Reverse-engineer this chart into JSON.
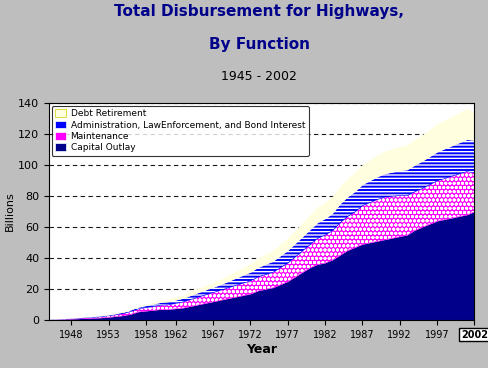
{
  "title_line1": "Total Disbursement for Highways,",
  "title_line2": "By Function",
  "subtitle": "1945 - 2002",
  "xlabel": "Year",
  "ylabel": "Billions",
  "years": [
    1945,
    1946,
    1947,
    1948,
    1949,
    1950,
    1951,
    1952,
    1953,
    1954,
    1955,
    1956,
    1957,
    1958,
    1959,
    1960,
    1961,
    1962,
    1963,
    1964,
    1965,
    1966,
    1967,
    1968,
    1969,
    1970,
    1971,
    1972,
    1973,
    1974,
    1975,
    1976,
    1977,
    1978,
    1979,
    1980,
    1981,
    1982,
    1983,
    1984,
    1985,
    1986,
    1987,
    1988,
    1989,
    1990,
    1991,
    1992,
    1993,
    1994,
    1995,
    1996,
    1997,
    1998,
    1999,
    2000,
    2001,
    2002
  ],
  "capital_outlay": [
    0.3,
    0.4,
    0.6,
    0.8,
    1.0,
    1.2,
    1.4,
    1.6,
    2.0,
    2.5,
    3.0,
    4.0,
    5.5,
    6.0,
    6.5,
    7.0,
    7.0,
    7.5,
    8.0,
    9.0,
    10.0,
    11.0,
    12.0,
    13.0,
    14.0,
    15.0,
    16.0,
    17.0,
    19.0,
    20.0,
    21.0,
    23.0,
    25.0,
    28.0,
    31.0,
    34.0,
    36.0,
    37.0,
    39.0,
    42.0,
    45.0,
    47.0,
    49.0,
    50.0,
    51.0,
    52.0,
    53.0,
    54.0,
    55.0,
    58.0,
    60.0,
    62.0,
    64.0,
    65.0,
    66.0,
    67.0,
    68.0,
    70.0
  ],
  "maintenance": [
    0.1,
    0.15,
    0.2,
    0.3,
    0.4,
    0.5,
    0.6,
    0.8,
    1.0,
    1.2,
    1.5,
    1.8,
    2.0,
    2.2,
    2.5,
    2.8,
    3.0,
    3.5,
    4.0,
    4.5,
    5.0,
    5.5,
    6.0,
    6.5,
    7.0,
    7.5,
    8.0,
    8.5,
    9.0,
    9.5,
    10.0,
    11.0,
    12.0,
    13.0,
    14.0,
    15.0,
    17.0,
    18.0,
    19.0,
    21.0,
    22.0,
    23.0,
    25.0,
    26.0,
    27.0,
    27.5,
    27.0,
    26.5,
    25.5,
    25.0,
    25.0,
    25.5,
    26.0,
    26.5,
    27.0,
    27.5,
    28.0,
    25.0
  ],
  "admin_law": [
    0.1,
    0.1,
    0.15,
    0.2,
    0.25,
    0.3,
    0.35,
    0.4,
    0.5,
    0.6,
    0.7,
    0.9,
    1.0,
    1.2,
    1.5,
    1.7,
    1.9,
    2.0,
    2.2,
    2.5,
    2.8,
    3.0,
    3.2,
    3.5,
    4.0,
    4.5,
    5.0,
    5.5,
    6.0,
    6.5,
    7.0,
    7.5,
    8.0,
    8.5,
    9.0,
    9.5,
    10.0,
    10.5,
    11.0,
    12.0,
    12.5,
    13.0,
    13.5,
    14.0,
    14.5,
    15.0,
    15.5,
    16.0,
    16.5,
    17.0,
    17.5,
    18.0,
    18.5,
    19.0,
    19.5,
    20.0,
    20.5,
    21.0
  ],
  "debt_retirement": [
    0.05,
    0.05,
    0.1,
    0.1,
    0.2,
    0.2,
    0.2,
    0.3,
    0.3,
    0.4,
    0.5,
    0.6,
    0.8,
    1.0,
    1.2,
    1.5,
    1.8,
    2.0,
    2.2,
    2.5,
    2.8,
    3.0,
    3.2,
    3.5,
    4.0,
    4.5,
    5.0,
    5.5,
    6.0,
    6.5,
    7.0,
    7.5,
    8.0,
    8.5,
    9.0,
    9.5,
    10.0,
    10.5,
    11.0,
    11.5,
    12.0,
    12.5,
    13.0,
    13.5,
    14.0,
    14.5,
    15.0,
    15.5,
    16.0,
    16.5,
    17.0,
    17.5,
    18.0,
    18.5,
    19.0,
    19.5,
    20.0,
    18.0
  ],
  "ylim": [
    0,
    140
  ],
  "xlim": [
    1945,
    2002
  ],
  "xticks": [
    1948,
    1953,
    1958,
    1962,
    1967,
    1972,
    1977,
    1982,
    1987,
    1992,
    1997,
    2002
  ],
  "yticks": [
    0,
    20,
    40,
    60,
    80,
    100,
    120,
    140
  ],
  "bg_color": "#bebebe",
  "plot_bg_color": "#ffffff",
  "title_color": "#00008b",
  "subtitle_color": "#000000",
  "capital_color": "#00008b",
  "maintenance_color": "#ff00ff",
  "admin_color": "#0000ff",
  "debt_color": "#ffffe0",
  "legend_items": [
    {
      "label": "Debt Retirement",
      "color": "#ffffe0",
      "edge": "#cccc00"
    },
    {
      "label": "Administration, LawEnforcement, and Bond Interest",
      "color": "#0000ff",
      "edge": "#ffffff"
    },
    {
      "label": "Maintenance",
      "color": "#ff00ff",
      "edge": "#ffffff"
    },
    {
      "label": "Capital Outlay",
      "color": "#00008b",
      "edge": "#ffffff"
    }
  ]
}
